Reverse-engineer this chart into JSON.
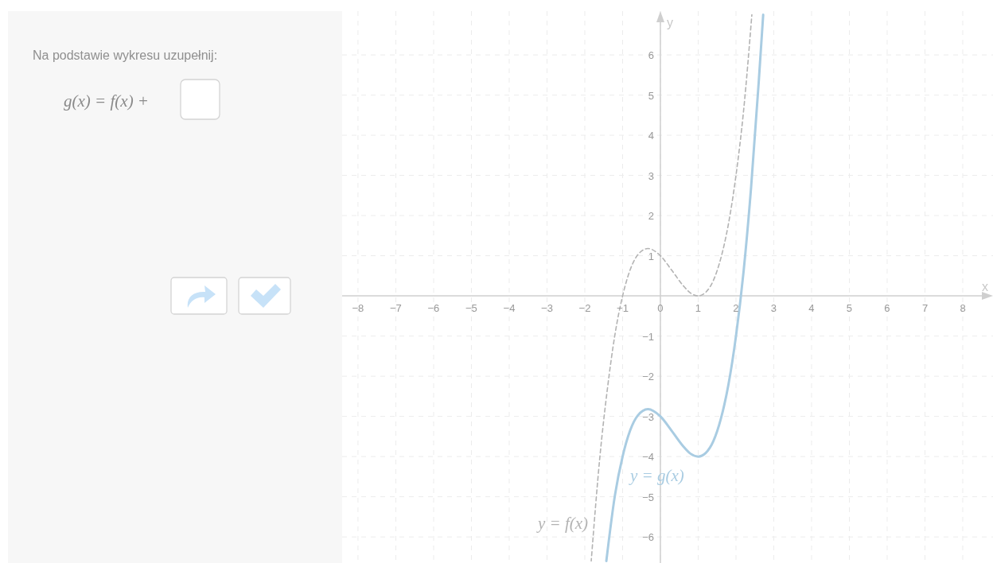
{
  "chart_data": {
    "type": "line",
    "xlabel": "x",
    "ylabel": "y",
    "annotations": [
      "Na podstawie wykresu uzupełnij:",
      "g(x) = f(x) +"
    ],
    "xlim": [
      -8.42,
      8.8
    ],
    "ylim": [
      -6.65,
      7.09
    ],
    "xticks": [
      -8,
      -7,
      -6,
      -5,
      -4,
      -3,
      -2,
      -1,
      0,
      1,
      2,
      3,
      4,
      5,
      6,
      7,
      8
    ],
    "yticks": [
      -6,
      -5,
      -4,
      -3,
      -2,
      -1,
      1,
      2,
      3,
      4,
      5,
      6
    ],
    "grid": true,
    "series": [
      {
        "name": "y = f(x)",
        "color": "#b3b3b3",
        "line_style": "dashed",
        "x": [
          -1.83,
          -1.6,
          -1.4,
          -1.2,
          -1,
          -0.8,
          -0.6,
          -0.33,
          0,
          0.3,
          0.6,
          0.8,
          1,
          1.2,
          1.4,
          1.6,
          1.8,
          2,
          2.2,
          2.42
        ],
        "values": [
          -6.6,
          -4,
          -2.3,
          -0.95,
          0,
          0.65,
          1.02,
          1.18,
          1,
          0.64,
          0.26,
          0.07,
          0,
          0.09,
          0.38,
          0.94,
          1.79,
          3,
          4.6,
          7
        ]
      },
      {
        "name": "y = g(x)",
        "color": "#a9cce2",
        "line_style": "solid",
        "x": [
          -1.43,
          -1.2,
          -1,
          -0.8,
          -0.6,
          -0.33,
          0,
          0.3,
          0.6,
          0.8,
          1,
          1.2,
          1.4,
          1.6,
          1.8,
          2,
          2.2,
          2.4,
          2.6,
          2.72
        ],
        "values": [
          -6.6,
          -4.95,
          -4,
          -3.35,
          -2.98,
          -2.82,
          -3,
          -3.36,
          -3.74,
          -3.93,
          -4,
          -3.91,
          -3.62,
          -3.06,
          -2.21,
          -1,
          0.6,
          2.7,
          5.3,
          7
        ]
      }
    ]
  }
}
